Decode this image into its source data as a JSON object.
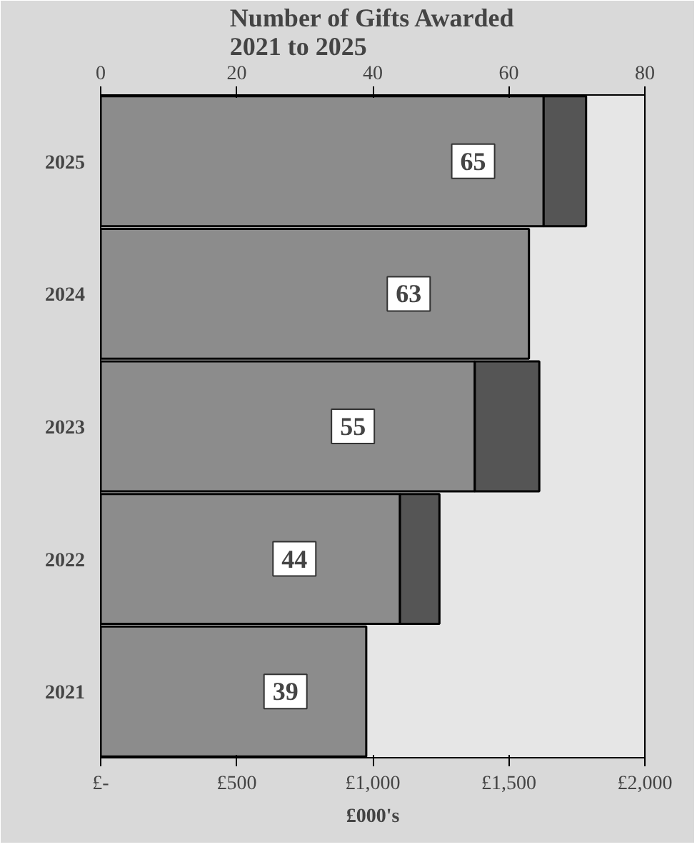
{
  "chart_data": {
    "type": "bar",
    "orientation": "horizontal",
    "stacked": true,
    "title": "Number of Gifts Awarded\n2021 to 2025",
    "xlabel": "£000's",
    "categories": [
      "2025",
      "2024",
      "2023",
      "2022",
      "2021"
    ],
    "series": [
      {
        "color": "#8c8c8c",
        "values": [
          1628,
          1574,
          1375,
          1100,
          976
        ]
      },
      {
        "color": "#555555",
        "values": [
          156,
          null,
          237,
          145,
          null
        ]
      }
    ],
    "xlim": [
      0,
      2000
    ],
    "xticks": [
      {
        "value": 0,
        "label": "£-"
      },
      {
        "value": 500,
        "label": "£500"
      },
      {
        "value": 1000,
        "label": "£1,000"
      },
      {
        "value": 1500,
        "label": "£1,500"
      },
      {
        "value": 2000,
        "label": "£2,000"
      }
    ],
    "x2lim": [
      0,
      80
    ],
    "x2ticks": [
      0,
      20,
      40,
      60,
      80
    ],
    "annotations": [
      {
        "text": "65",
        "x": 1369,
        "y": "2025"
      },
      {
        "text": "63",
        "x": 1132,
        "y": "2024"
      },
      {
        "text": "55",
        "x": 927,
        "y": "2023"
      },
      {
        "text": "44",
        "x": 712,
        "y": "2022"
      },
      {
        "text": "39",
        "x": 679,
        "y": "2021"
      }
    ],
    "grid": false
  }
}
